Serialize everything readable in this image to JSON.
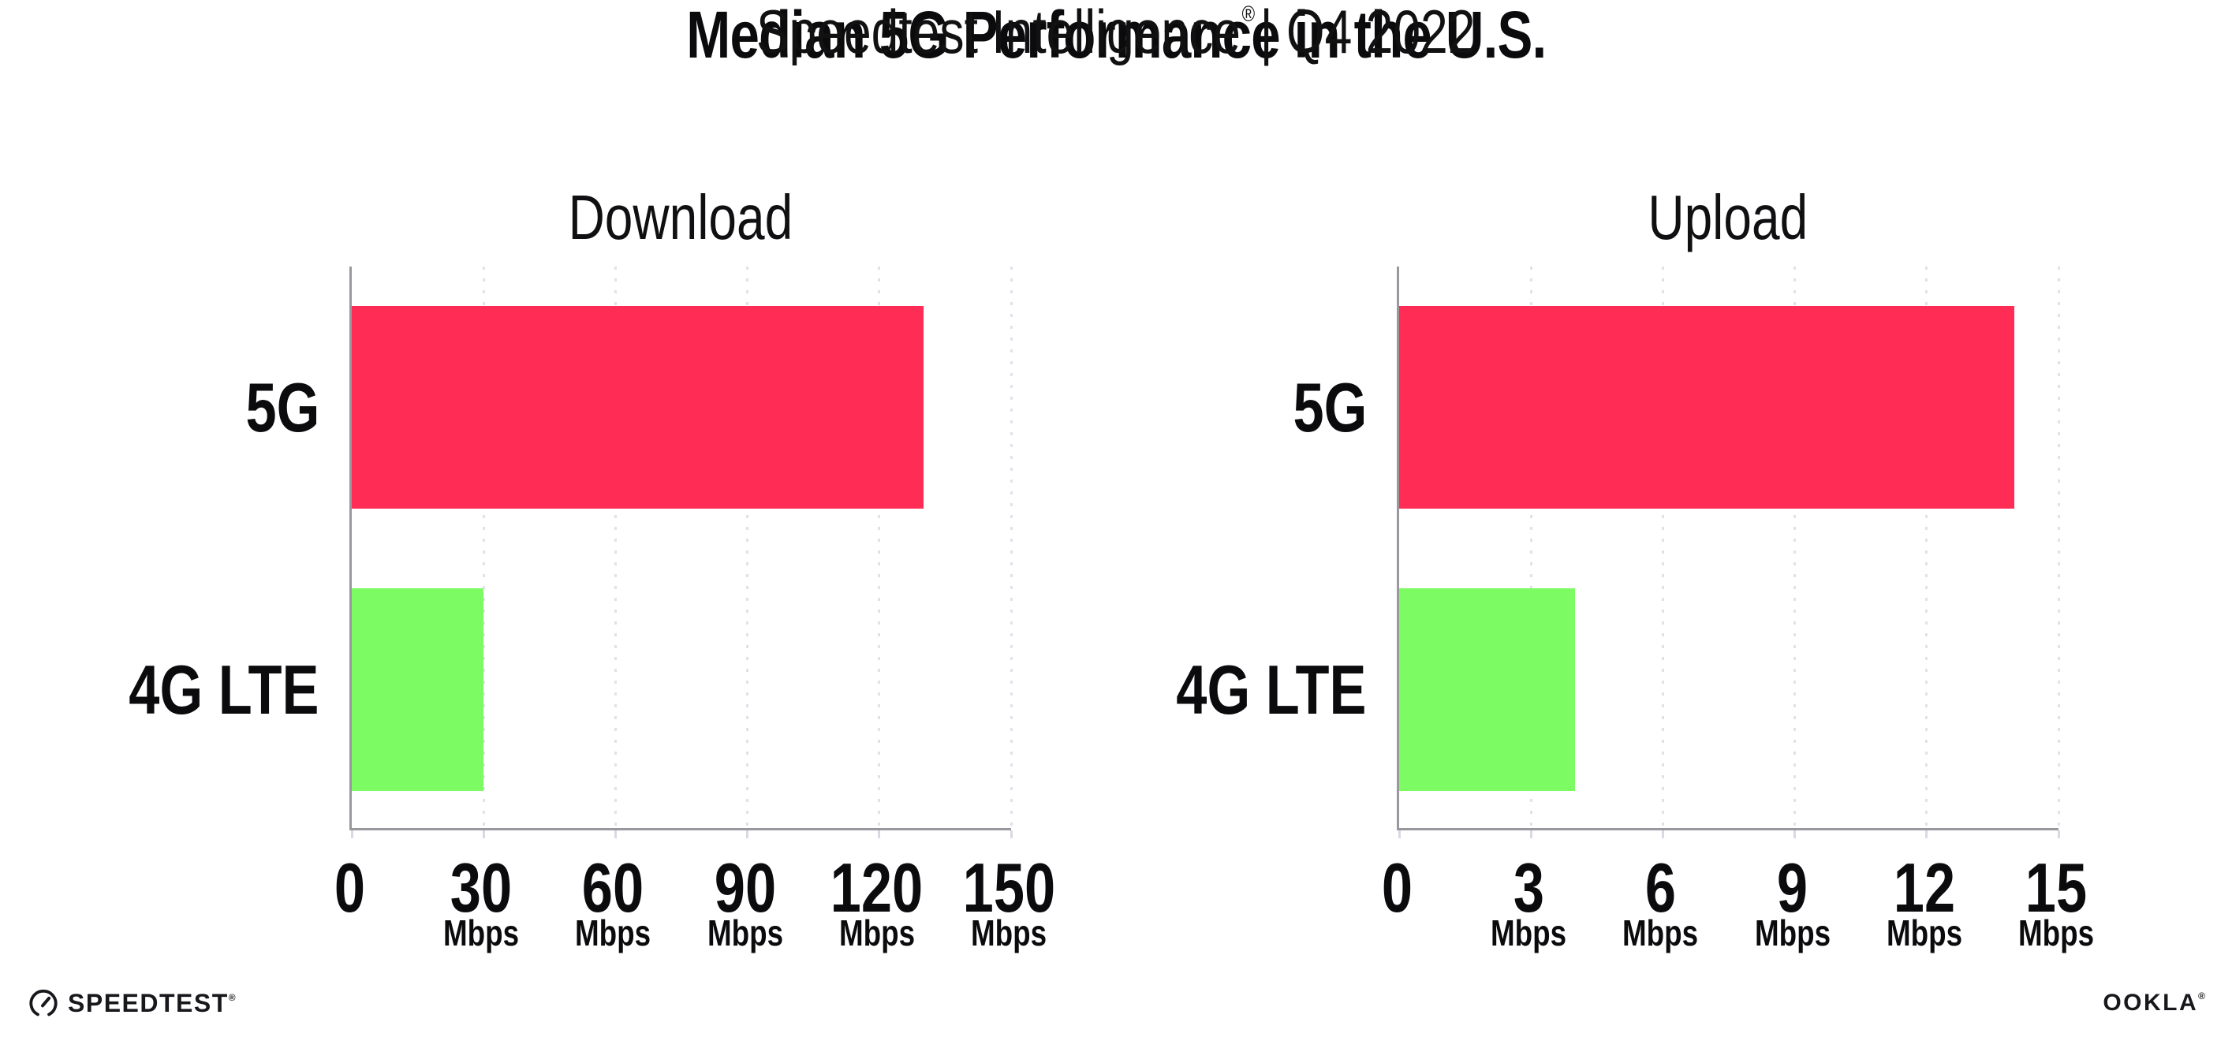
{
  "header": {
    "title": "Median 5G Performance in the U.S.",
    "subtitle_brand": "Speedtest Intelligence",
    "subtitle_reg": "®",
    "subtitle_rest": "| Q4 2022"
  },
  "chart_data": [
    {
      "type": "bar",
      "orientation": "horizontal",
      "title": "Download",
      "categories": [
        "5G",
        "4G LTE"
      ],
      "values": [
        130,
        30
      ],
      "unit_label": "Mbps",
      "xlim": [
        0,
        150
      ],
      "xticks": [
        0,
        30,
        60,
        90,
        120,
        150
      ],
      "bar_colors": [
        "#ff2d55",
        "#7cfc62"
      ],
      "grid": "vertical-dotted",
      "legend": "none"
    },
    {
      "type": "bar",
      "orientation": "horizontal",
      "title": "Upload",
      "categories": [
        "5G",
        "4G LTE"
      ],
      "values": [
        14,
        4
      ],
      "unit_label": "Mbps",
      "xlim": [
        0,
        15
      ],
      "xticks": [
        0,
        3,
        6,
        9,
        12,
        15
      ],
      "bar_colors": [
        "#ff2d55",
        "#7cfc62"
      ],
      "grid": "vertical-dotted",
      "legend": "none"
    }
  ],
  "footer": {
    "speedtest_text": "SPEEDTEST",
    "speedtest_reg": "®",
    "ookla_text": "OOKLA",
    "ookla_reg": "®"
  },
  "style": {
    "bar_5g_color": "#ff2d55",
    "bar_4g_color": "#7cfc62",
    "axis_color": "#98989f",
    "grid_color": "#e1e1ec",
    "text_color": "#0b0b0d"
  }
}
